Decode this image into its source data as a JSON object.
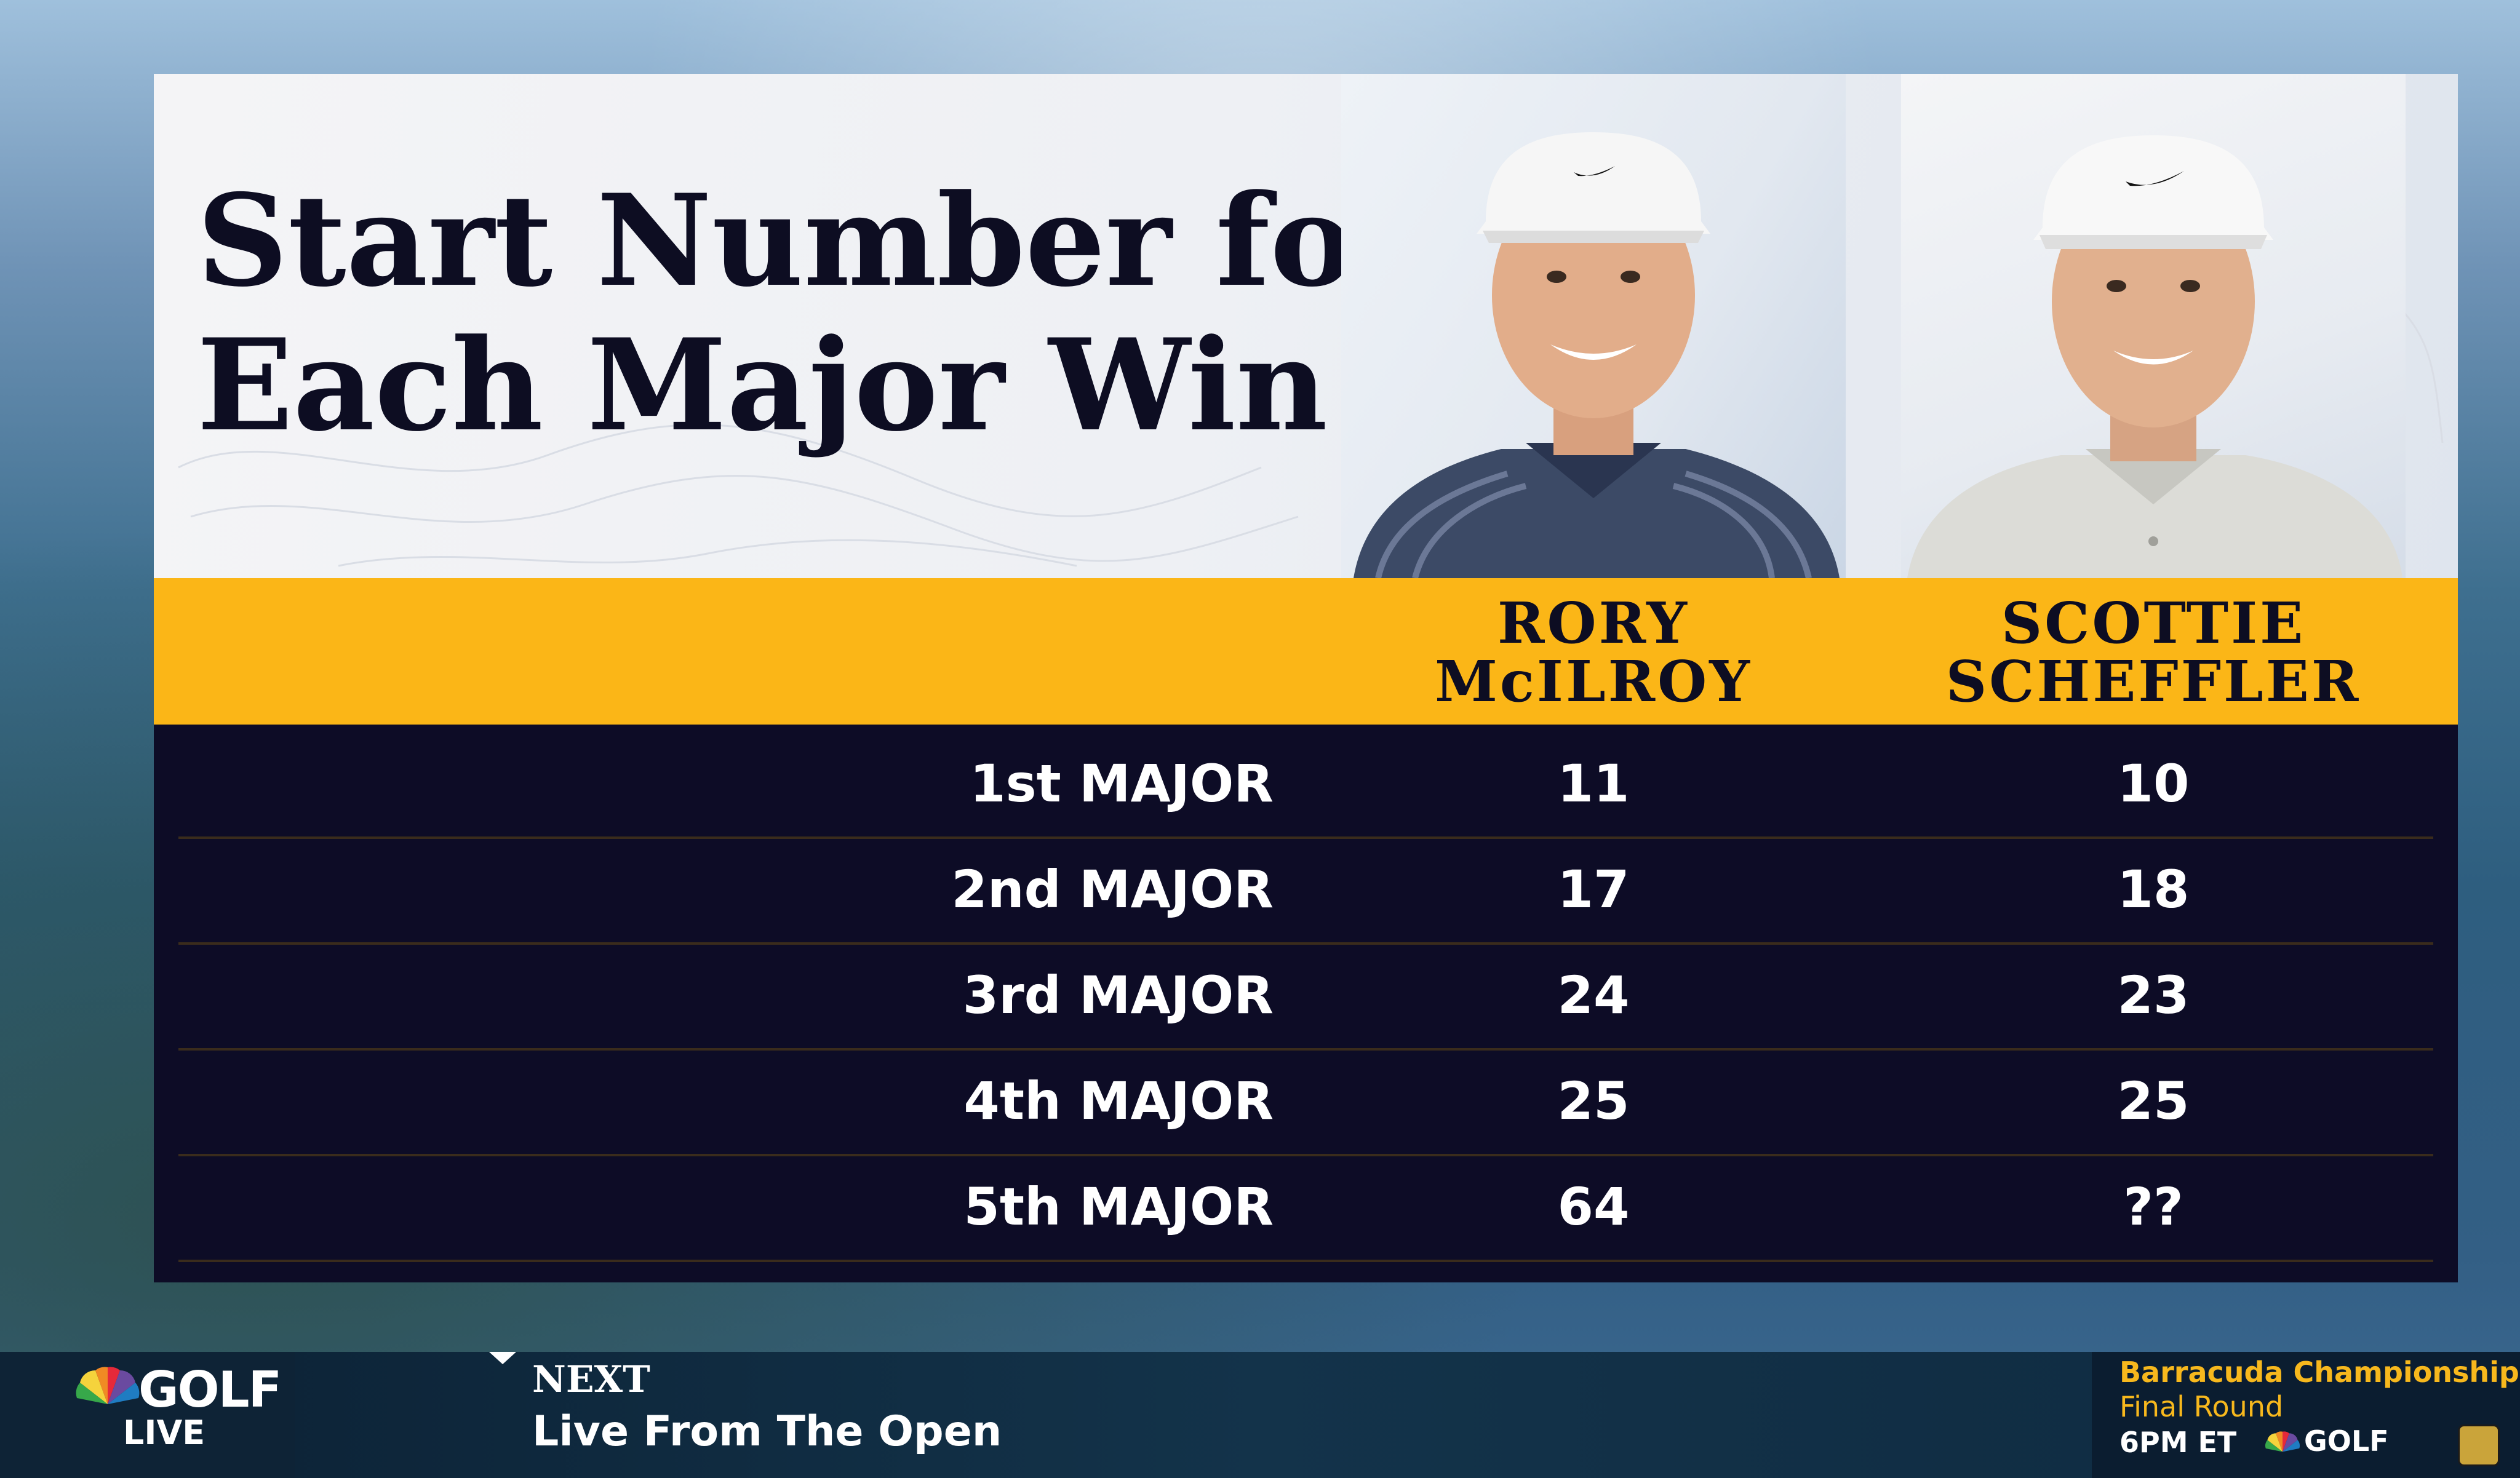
{
  "graphic": {
    "title_line1": "Start Number for",
    "title_line2": "Each Major Win",
    "players": [
      {
        "first": "RORY",
        "last": "McILROY"
      },
      {
        "first": "SCOTTIE",
        "last": "SCHEFFLER"
      }
    ],
    "rows": [
      {
        "label": "1st MAJOR",
        "rory": "11",
        "scottie": "10"
      },
      {
        "label": "2nd MAJOR",
        "rory": "17",
        "scottie": "18"
      },
      {
        "label": "3rd MAJOR",
        "rory": "24",
        "scottie": "23"
      },
      {
        "label": "4th MAJOR",
        "rory": "25",
        "scottie": "25"
      },
      {
        "label": "5th MAJOR",
        "rory": "64",
        "scottie": "??"
      }
    ],
    "colors": {
      "band": "#fbb617",
      "table_bg": "#0d0c26",
      "title": "#0d0d22"
    }
  },
  "ticker": {
    "brand": "GOLF",
    "live": "LIVE",
    "next_label": "NEXT",
    "next_show": "Live From The Open",
    "promo_event": "Barracuda Championship",
    "promo_round": "Final Round",
    "promo_time": "6PM ET",
    "promo_brand": "GOLF",
    "icons": [
      "nbc-peacock-icon",
      "network-badge-icon"
    ]
  }
}
